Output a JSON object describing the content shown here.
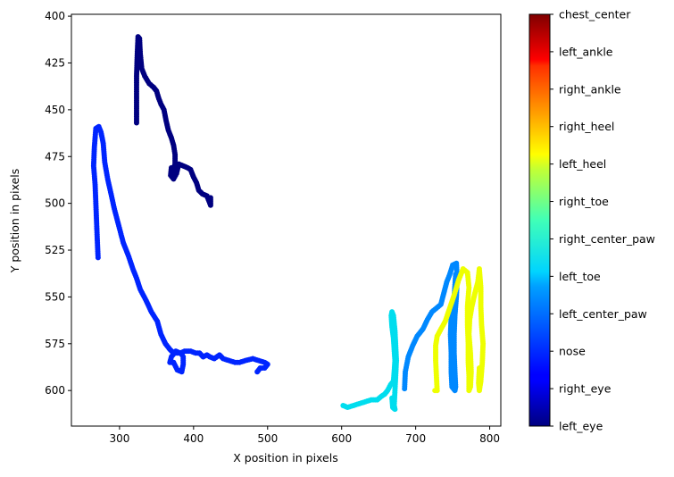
{
  "chart_data": {
    "type": "scatter",
    "title": "",
    "xlabel": "X position in pixels",
    "ylabel": "Y position in pixels",
    "xlim": [
      235,
      815
    ],
    "ylim": [
      619,
      399
    ],
    "y_inverted": true,
    "grid": false,
    "x_ticks": [
      300,
      400,
      500,
      600,
      700,
      800
    ],
    "y_ticks": [
      400,
      425,
      450,
      475,
      500,
      525,
      550,
      575,
      600
    ],
    "colorbar": {
      "colormap": "jet",
      "labels": [
        "left_eye",
        "right_eye",
        "nose",
        "left_center_paw",
        "left_toe",
        "right_center_paw",
        "right_toe",
        "left_heel",
        "right_heel",
        "right_ankle",
        "left_ankle",
        "chest_center"
      ]
    },
    "series": [
      {
        "name": "left_eye",
        "color": "#000080",
        "points": [
          [
            323,
            457
          ],
          [
            323,
            445
          ],
          [
            323,
            432
          ],
          [
            324,
            420
          ],
          [
            325,
            411
          ],
          [
            327,
            412
          ],
          [
            328,
            420
          ],
          [
            330,
            428
          ],
          [
            334,
            432
          ],
          [
            340,
            436
          ],
          [
            346,
            438
          ],
          [
            350,
            440
          ],
          [
            353,
            444
          ],
          [
            356,
            447
          ],
          [
            360,
            450
          ],
          [
            363,
            456
          ],
          [
            366,
            461
          ],
          [
            370,
            465
          ],
          [
            373,
            469
          ],
          [
            375,
            474
          ],
          [
            375,
            479
          ],
          [
            372,
            483
          ],
          [
            370,
            481
          ],
          [
            369,
            485
          ],
          [
            373,
            487
          ],
          [
            377,
            484
          ],
          [
            380,
            479
          ],
          [
            386,
            480
          ],
          [
            392,
            481
          ],
          [
            396,
            482
          ],
          [
            400,
            486
          ],
          [
            404,
            489
          ],
          [
            407,
            493
          ],
          [
            412,
            495
          ],
          [
            418,
            496
          ],
          [
            423,
            501
          ],
          [
            423,
            497
          ]
        ]
      },
      {
        "name": "nose",
        "color": "#0025ff",
        "points": [
          [
            271,
            529
          ],
          [
            270,
            520
          ],
          [
            269,
            510
          ],
          [
            268,
            500
          ],
          [
            267,
            490
          ],
          [
            265,
            480
          ],
          [
            266,
            470
          ],
          [
            268,
            460
          ],
          [
            272,
            459
          ],
          [
            275,
            462
          ],
          [
            278,
            468
          ],
          [
            280,
            478
          ],
          [
            284,
            487
          ],
          [
            288,
            494
          ],
          [
            293,
            503
          ],
          [
            299,
            512
          ],
          [
            305,
            521
          ],
          [
            312,
            528
          ],
          [
            318,
            535
          ],
          [
            323,
            540
          ],
          [
            328,
            546
          ],
          [
            336,
            552
          ],
          [
            343,
            558
          ],
          [
            351,
            563
          ],
          [
            356,
            570
          ],
          [
            362,
            575
          ],
          [
            368,
            578
          ],
          [
            373,
            580
          ],
          [
            378,
            580
          ],
          [
            383,
            580
          ],
          [
            386,
            582
          ],
          [
            386,
            586
          ],
          [
            384,
            590
          ],
          [
            378,
            589
          ],
          [
            373,
            585
          ],
          [
            368,
            585
          ],
          [
            370,
            582
          ],
          [
            376,
            579
          ],
          [
            382,
            580
          ],
          [
            388,
            579
          ],
          [
            396,
            579
          ],
          [
            403,
            580
          ],
          [
            408,
            580
          ],
          [
            413,
            582
          ],
          [
            418,
            581
          ],
          [
            422,
            582
          ],
          [
            428,
            583
          ],
          [
            435,
            581
          ],
          [
            440,
            583
          ],
          [
            448,
            584
          ],
          [
            456,
            585
          ],
          [
            462,
            585
          ],
          [
            470,
            584
          ],
          [
            480,
            583
          ],
          [
            488,
            584
          ],
          [
            496,
            585
          ],
          [
            500,
            586
          ],
          [
            496,
            588
          ],
          [
            490,
            588
          ],
          [
            486,
            590
          ]
        ]
      },
      {
        "name": "left_center_paw",
        "color": "#0088ff",
        "points": [
          [
            685,
            599
          ],
          [
            686,
            590
          ],
          [
            690,
            582
          ],
          [
            696,
            576
          ],
          [
            702,
            571
          ],
          [
            710,
            567
          ],
          [
            716,
            562
          ],
          [
            722,
            558
          ],
          [
            728,
            556
          ],
          [
            734,
            554
          ],
          [
            738,
            548
          ],
          [
            742,
            542
          ],
          [
            746,
            538
          ],
          [
            750,
            533
          ],
          [
            755,
            532
          ],
          [
            756,
            540
          ],
          [
            755,
            550
          ],
          [
            753,
            560
          ],
          [
            752,
            570
          ],
          [
            752,
            580
          ],
          [
            753,
            590
          ],
          [
            754,
            598
          ],
          [
            753,
            600
          ],
          [
            749,
            598
          ],
          [
            748,
            590
          ],
          [
            748,
            580
          ],
          [
            747,
            570
          ],
          [
            748,
            560
          ],
          [
            752,
            550
          ],
          [
            754,
            538
          ]
        ]
      },
      {
        "name": "left_toe",
        "color": "#00ddee",
        "points": [
          [
            602,
            608
          ],
          [
            608,
            609
          ],
          [
            616,
            608
          ],
          [
            624,
            607
          ],
          [
            632,
            606
          ],
          [
            640,
            605
          ],
          [
            648,
            605
          ],
          [
            654,
            603
          ],
          [
            658,
            602
          ],
          [
            662,
            600
          ],
          [
            666,
            597
          ],
          [
            670,
            595
          ],
          [
            671,
            590
          ],
          [
            672,
            584
          ],
          [
            671,
            578
          ],
          [
            670,
            572
          ],
          [
            668,
            566
          ],
          [
            667,
            560
          ],
          [
            668,
            558
          ],
          [
            670,
            560
          ],
          [
            672,
            568
          ],
          [
            673,
            576
          ],
          [
            674,
            584
          ],
          [
            673,
            592
          ],
          [
            672,
            600
          ],
          [
            671,
            608
          ],
          [
            672,
            610
          ],
          [
            669,
            609
          ],
          [
            668,
            604
          ]
        ]
      },
      {
        "name": "left_heel",
        "color": "#eeff00",
        "points": [
          [
            726,
            600
          ],
          [
            729,
            600
          ],
          [
            728,
            592
          ],
          [
            727,
            584
          ],
          [
            727,
            576
          ],
          [
            729,
            571
          ],
          [
            733,
            568
          ],
          [
            740,
            563
          ],
          [
            746,
            556
          ],
          [
            752,
            549
          ],
          [
            758,
            541
          ],
          [
            764,
            535
          ],
          [
            770,
            537
          ],
          [
            772,
            545
          ],
          [
            770,
            555
          ],
          [
            770,
            565
          ],
          [
            771,
            575
          ],
          [
            771,
            585
          ],
          [
            772,
            592
          ],
          [
            772,
            600
          ],
          [
            774,
            598
          ],
          [
            775,
            590
          ],
          [
            774,
            580
          ],
          [
            772,
            570
          ],
          [
            773,
            562
          ],
          [
            776,
            555
          ],
          [
            780,
            548
          ],
          [
            784,
            542
          ],
          [
            786,
            535
          ],
          [
            788,
            545
          ],
          [
            788,
            555
          ],
          [
            789,
            565
          ],
          [
            791,
            575
          ],
          [
            790,
            585
          ],
          [
            788,
            595
          ],
          [
            786,
            600
          ],
          [
            785,
            596
          ],
          [
            786,
            588
          ]
        ]
      }
    ]
  }
}
